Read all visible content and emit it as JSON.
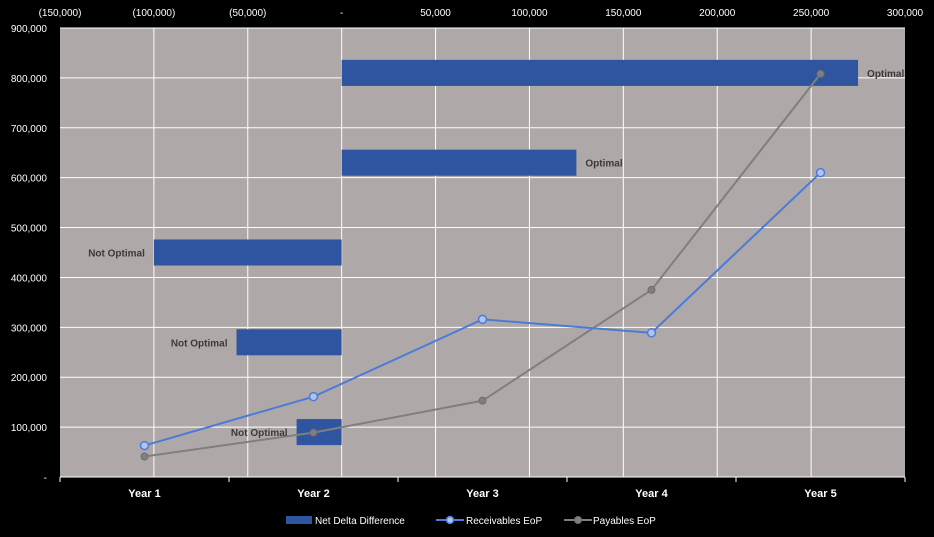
{
  "chart_data": {
    "type": "bar",
    "categories": [
      "Year 1",
      "Year 2",
      "Year 3",
      "Year 4",
      "Year 5"
    ],
    "bar_axis": {
      "position": "top",
      "range": [
        -150000,
        300000
      ],
      "ticks": [
        -150000,
        -100000,
        -50000,
        0,
        50000,
        100000,
        150000,
        200000,
        250000,
        300000
      ],
      "tick_labels": [
        "(150,000)",
        "(100,000)",
        "(50,000)",
        "-",
        "50,000",
        "100,000",
        "150,000",
        "200,000",
        "250,000",
        "300,000"
      ]
    },
    "line_axis": {
      "position": "left",
      "range": [
        0,
        900000
      ],
      "ticks": [
        0,
        100000,
        200000,
        300000,
        400000,
        500000,
        600000,
        700000,
        800000,
        900000
      ],
      "tick_labels": [
        "-",
        "100,000",
        "200,000",
        "300,000",
        "400,000",
        "500,000",
        "600,000",
        "700,000",
        "800,000",
        "900,000"
      ]
    },
    "series": [
      {
        "name": "Net Delta Difference",
        "type": "bar",
        "orientation": "horizontal",
        "color": "#2f55a0",
        "values": [
          -24000,
          -56000,
          -100000,
          125000,
          275000
        ],
        "labels": [
          "Not Optimal",
          "Not Optimal",
          "Not Optimal",
          "Optimal",
          "Optimal"
        ]
      },
      {
        "name": "Receivables EoP",
        "type": "line",
        "color": "#4a7bd8",
        "values": [
          63000,
          161000,
          316000,
          289000,
          610000
        ]
      },
      {
        "name": "Payables EoP",
        "type": "line",
        "color": "#7f7f7f",
        "values": [
          41000,
          89000,
          153000,
          375000,
          808000
        ]
      }
    ],
    "grid": true,
    "legend": "bottom",
    "plot_background": "#aea9a8",
    "page_background": "#000000"
  }
}
